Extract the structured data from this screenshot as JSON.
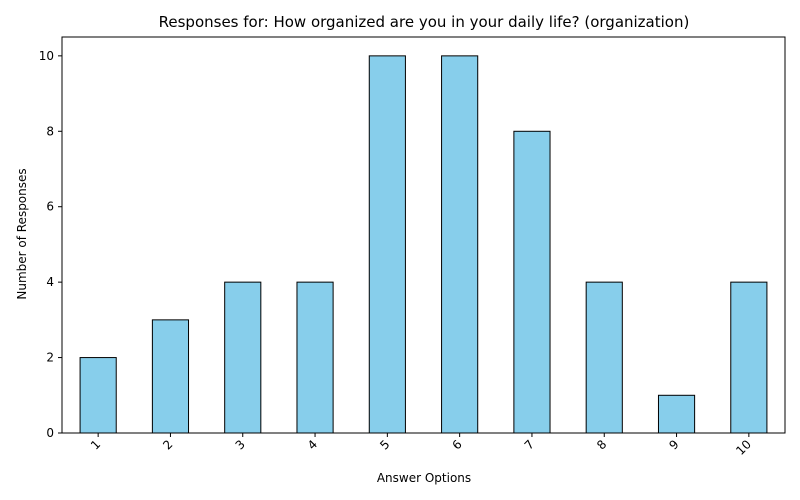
{
  "chart_data": {
    "type": "bar",
    "title": "Responses for: How organized are you in your daily life? (organization)",
    "xlabel": "Answer Options",
    "ylabel": "Number of Responses",
    "categories": [
      "1",
      "2",
      "3",
      "4",
      "5",
      "6",
      "7",
      "8",
      "9",
      "10"
    ],
    "values": [
      2,
      3,
      4,
      4,
      10,
      10,
      8,
      4,
      1,
      4
    ],
    "ylim": [
      0,
      10.5
    ],
    "yticks": [
      0,
      2,
      4,
      6,
      8,
      10
    ],
    "grid": false,
    "legend": "none",
    "bar_color": "#87ceeb",
    "bar_edge_color": "#000000"
  }
}
